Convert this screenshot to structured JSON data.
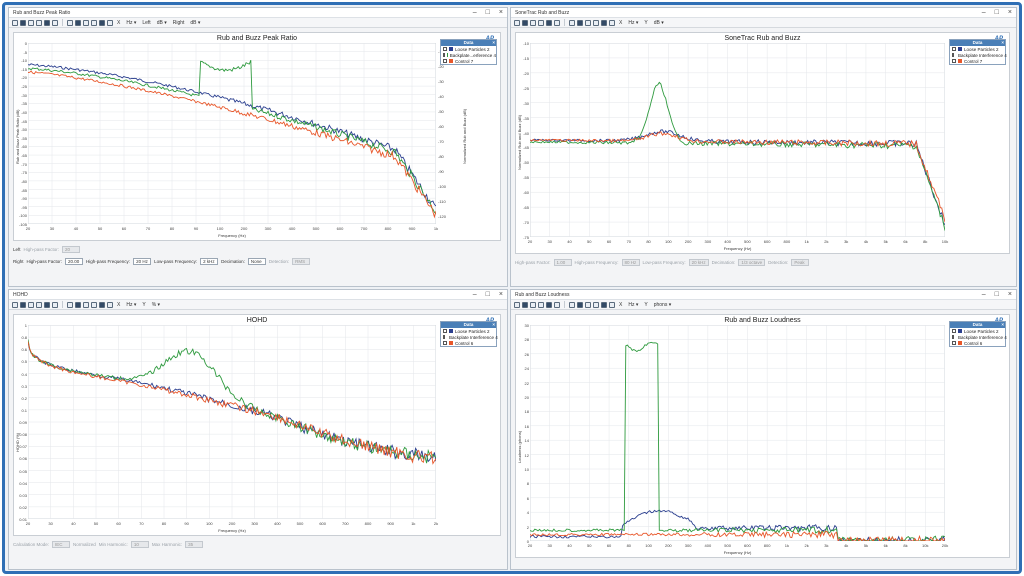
{
  "windows": [
    {
      "id": "rbpr",
      "title": "Rub and Buzz Peak Ratio",
      "toolbar": {
        "x_unit": "Hz",
        "left_label": "Left",
        "left_unit": "dB",
        "right_label": "Right",
        "right_unit": "dB"
      },
      "chart_title": "Rub and Buzz Peak Ratio",
      "ylabel": "Rub and Buzz Peak Ratio (dB)",
      "y2label": "Normalized Rub and Buzz (dB)",
      "xlabel": "Frequency (Hz)",
      "legend": {
        "header": "Data",
        "items": [
          "Loose Particles  2",
          "Backplate...erference  4",
          "Control  7"
        ]
      },
      "controls": [
        {
          "label": "Left",
          "fields": [
            {
              "label": "High-pass Factor:",
              "value": "20",
              "disabled": true
            }
          ]
        },
        {
          "label": "Right",
          "fields": [
            {
              "label": "High-pass Factor:",
              "value": "20.00"
            },
            {
              "label": "High-pass Frequency:",
              "value": "20 Hz"
            },
            {
              "label": "Low-pass Frequency:",
              "value": "2 kHz"
            },
            {
              "label": "Decimation:",
              "value": "None"
            },
            {
              "label": "Detection:",
              "value": "RMS",
              "disabled": true
            }
          ]
        }
      ],
      "yticks": [
        "0",
        "-5",
        "-10",
        "-15",
        "-20",
        "-25",
        "-30",
        "-35",
        "-40",
        "-45",
        "-50",
        "-55",
        "-60",
        "-65",
        "-70",
        "-75",
        "-80",
        "-85",
        "-90",
        "-95",
        "-100",
        "-105"
      ],
      "y2ticks": [
        "-10",
        "-20",
        "-30",
        "-40",
        "-50",
        "-60",
        "-70",
        "-80",
        "-90",
        "-100",
        "-110",
        "-120"
      ],
      "xticks": [
        "20",
        "30",
        "40",
        "50",
        "60",
        "70",
        "80",
        "90",
        "100",
        "200",
        "300",
        "400",
        "500",
        "600",
        "700",
        "800",
        "900",
        "1k"
      ]
    },
    {
      "id": "stc",
      "title": "SoneTrac Rub and Buzz",
      "toolbar": {
        "x_unit": "Hz",
        "left_label": "Y",
        "left_unit": "dB"
      },
      "chart_title": "SoneTrac Rub and Buzz",
      "ylabel": "Normalized Rub and Buzz (dB)",
      "xlabel": "Frequency (Hz)",
      "legend": {
        "header": "Data",
        "items": [
          "Loose Particles  2",
          "Backplate Interference  4",
          "Control  7"
        ]
      },
      "controls": [
        {
          "label": "",
          "fields": [
            {
              "label": "High-pass Factor:",
              "value": "1.00",
              "disabled": true
            },
            {
              "label": "High-pass Frequency:",
              "value": "80 Hz",
              "disabled": true
            },
            {
              "label": "Low-pass Frequency:",
              "value": "20 kHz",
              "disabled": true
            },
            {
              "label": "Decimation:",
              "value": "1/3 octave",
              "disabled": true
            },
            {
              "label": "Detection:",
              "value": "Peak",
              "disabled": true
            }
          ]
        }
      ],
      "yticks": [
        "-10",
        "-15",
        "-20",
        "-25",
        "-30",
        "-35",
        "-40",
        "-45",
        "-50",
        "-55",
        "-60",
        "-65",
        "-70",
        "-75"
      ],
      "xticks": [
        "20",
        "30",
        "40",
        "50",
        "60",
        "70",
        "80",
        "100",
        "200",
        "300",
        "400",
        "500",
        "600",
        "800",
        "1k",
        "2k",
        "3k",
        "4k",
        "5k",
        "6k",
        "8k",
        "10k"
      ]
    },
    {
      "id": "hohd",
      "title": "HOHD",
      "toolbar": {
        "x_unit": "Hz",
        "left_label": "Y",
        "left_unit": "%"
      },
      "chart_title": "HOHD",
      "ylabel": "HOHD (%)",
      "xlabel": "Frequency (Hz)",
      "legend": {
        "header": "Data",
        "items": [
          "Loose Particles  2",
          "Backplate Interference  4",
          "Control  6"
        ]
      },
      "controls": [
        {
          "label": "",
          "fields": [
            {
              "label": "Calculation Mode:",
              "value": "IEC",
              "disabled": true
            },
            {
              "label": "Normalized",
              "value": "",
              "disabled": true
            },
            {
              "label": "Min Harmonic:",
              "value": "10",
              "disabled": true
            },
            {
              "label": "Max Harmonic:",
              "value": "35",
              "disabled": true
            }
          ]
        }
      ],
      "yticks": [
        "1",
        "0.8",
        "0.6",
        "0.5",
        "0.4",
        "0.3",
        "0.2",
        "0.1",
        "0.09",
        "0.08",
        "0.07",
        "0.06",
        "0.05",
        "0.04",
        "0.03",
        "0.02",
        "0.01"
      ],
      "xticks": [
        "20",
        "30",
        "40",
        "50",
        "60",
        "70",
        "80",
        "90",
        "100",
        "200",
        "300",
        "400",
        "500",
        "600",
        "700",
        "800",
        "900",
        "1k",
        "2k"
      ]
    },
    {
      "id": "rbl",
      "title": "Rub and Buzz Loudness",
      "toolbar": {
        "x_unit": "Hz",
        "left_label": "Y",
        "left_unit": "phons"
      },
      "chart_title": "Rub and Buzz Loudness",
      "ylabel": "Loudness (phons)",
      "xlabel": "Frequency (Hz)",
      "legend": {
        "header": "Data",
        "items": [
          "Loose Particles  2",
          "Backplate Interference  4",
          "Control  6"
        ]
      },
      "controls": [],
      "yticks": [
        "30",
        "28",
        "26",
        "24",
        "22",
        "20",
        "18",
        "16",
        "14",
        "12",
        "10",
        "8",
        "6",
        "4",
        "2",
        "0"
      ],
      "xticks": [
        "20",
        "30",
        "40",
        "50",
        "60",
        "80",
        "100",
        "200",
        "300",
        "400",
        "500",
        "600",
        "800",
        "1k",
        "2k",
        "3k",
        "4k",
        "5k",
        "6k",
        "8k",
        "10k",
        "20k"
      ]
    }
  ],
  "colors": {
    "loose": "#2b3f8f",
    "backplate": "#2e9a3e",
    "control": "#e8572a"
  }
}
